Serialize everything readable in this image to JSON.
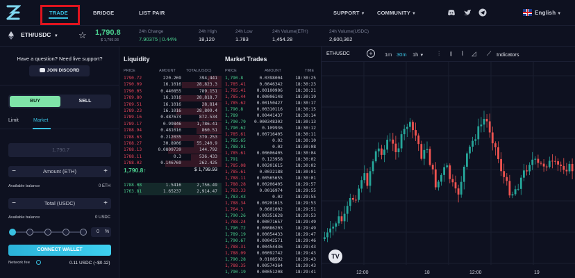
{
  "nav": {
    "items": [
      {
        "label": "TRADE",
        "active": true
      },
      {
        "label": "BRIDGE"
      },
      {
        "label": "LIST PAIR"
      }
    ],
    "support": "SUPPORT",
    "community": "COMMUNITY",
    "language": "English",
    "icons": [
      "discord-icon",
      "twitter-icon",
      "telegram-icon"
    ]
  },
  "ticker": {
    "pair": "ETH/USDC",
    "last_price": "1,790.8",
    "last_usd": "$ 1,799.93",
    "stats": [
      {
        "label": "24h Change",
        "value": "7.90375 | 0.44%",
        "green": true
      },
      {
        "label": "24h High",
        "value": "18,120"
      },
      {
        "label": "24h Low",
        "value": "1.783"
      },
      {
        "label": "24h Volume(ETH)",
        "value": "1,454.28"
      },
      {
        "label": "24h Volume(USDC)",
        "value": "2,600,362"
      }
    ]
  },
  "left": {
    "question": "Have a question? Need live support?",
    "join_discord": "JOIN DISCORD",
    "buy": "BUY",
    "sell": "SELL",
    "limit": "Limit",
    "market": "Market",
    "price_placeholder": "1,790.7",
    "amount_label": "Amount (ETH)",
    "avail_label": "Available balance",
    "avail_eth": "0 ETH",
    "total_label": "Total (USDC)",
    "avail_usdc": "0 USDC",
    "pct_value": "0",
    "pct_sign": "%",
    "connect": "CONNECT WALLET",
    "network_fee_label": "Network fee",
    "network_fee_value": "0.11 USDC (~$0.12)"
  },
  "liquidity": {
    "title": "Liquidity",
    "headers": [
      "PRICE",
      "AMOUNT",
      "TOTAL(USDC)"
    ],
    "asks": [
      [
        "1790.72",
        "220.269",
        "394,441"
      ],
      [
        "1790.09",
        "16.1016",
        "28,823.3"
      ],
      [
        "1790.05",
        "0.440855",
        "789.151"
      ],
      [
        "1789.80",
        "16.1016",
        "28,818.7"
      ],
      [
        "1789.51",
        "16.1016",
        "28,814"
      ],
      [
        "1789.23",
        "16.1016",
        "28,809.4"
      ],
      [
        "1789.16",
        "0.487674",
        "872.534"
      ],
      [
        "1789.17",
        "0.99846",
        "1,786.41"
      ],
      [
        "1788.94",
        "0.481016",
        "860.51"
      ],
      [
        "1788.63",
        "0.212035",
        "379.253"
      ],
      [
        "1788.27",
        "30.8906",
        "55,240.9"
      ],
      [
        "1788.13",
        "0.0809739",
        "144.792"
      ],
      [
        "1788.11",
        "0.3",
        "536.433"
      ],
      [
        "1788.02",
        "0.146769",
        "262.425"
      ]
    ],
    "mid_price": "1,790.8↑",
    "mid_usd": "$ 1,799.93",
    "bids": [
      [
        "1788.08",
        "1.5416",
        "2,756.49"
      ],
      [
        "1763.81",
        "1.65237",
        "2,914.47"
      ]
    ]
  },
  "trades": {
    "title": "Market Trades",
    "headers": [
      "PRICE",
      "AMOUNT",
      "TIME"
    ],
    "rows": [
      [
        "1,790.8",
        "0.0398004",
        "18:30:25",
        "g"
      ],
      [
        "1,785.41",
        "0.0046342",
        "18:30:23",
        "r"
      ],
      [
        "1,785.41",
        "0.00100906",
        "18:30:21",
        "r"
      ],
      [
        "1,785.44",
        "0.00006148",
        "18:30:19",
        "r"
      ],
      [
        "1,785.62",
        "0.00150427",
        "18:30:17",
        "r"
      ],
      [
        "1,790.8",
        "0.00310116",
        "18:30:15",
        "g"
      ],
      [
        "1,789",
        "0.00441437",
        "18:30:14",
        "g"
      ],
      [
        "1,790.79",
        "0.000348302",
        "18:30:13",
        "g"
      ],
      [
        "1,790.62",
        "0.109936",
        "18:30:12",
        "g"
      ],
      [
        "1,785.61",
        "0.00716405",
        "18:30:11",
        "r"
      ],
      [
        "1,785.65",
        "0.02",
        "18:30:10",
        "g"
      ],
      [
        "1,788.91",
        "0.02",
        "18:30:08",
        "g"
      ],
      [
        "1,785.61",
        "0.00606405",
        "18:30:04",
        "r"
      ],
      [
        "1,791",
        "0.123958",
        "18:30:02",
        "g"
      ],
      [
        "1,785.08",
        "0.00201615",
        "18:30:02",
        "r"
      ],
      [
        "1,785.61",
        "0.0032188",
        "18:30:01",
        "r"
      ],
      [
        "1,788.11",
        "0.00565655",
        "18:30:01",
        "r"
      ],
      [
        "1,788.28",
        "0.00206405",
        "18:29:57",
        "r"
      ],
      [
        "1,783.33",
        "0.0016974",
        "18:29:55",
        "r"
      ],
      [
        "1,783.43",
        "0.02",
        "18:29:55",
        "g"
      ],
      [
        "1,788.34",
        "0.00201615",
        "18:29:53",
        "r"
      ],
      [
        "1,764.3",
        "0.0601002",
        "18:29:51",
        "r"
      ],
      [
        "1,790.26",
        "0.00351628",
        "18:29:53",
        "g"
      ],
      [
        "1,788.24",
        "0.00071657",
        "18:29:49",
        "r"
      ],
      [
        "1,790.72",
        "0.00086203",
        "18:29:49",
        "g"
      ],
      [
        "1,789.19",
        "0.00054433",
        "18:29:47",
        "g"
      ],
      [
        "1,790.67",
        "0.00042571",
        "18:29:46",
        "g"
      ],
      [
        "1,788.31",
        "0.00454436",
        "18:29:43",
        "r"
      ],
      [
        "1,788.09",
        "0.00092742",
        "18:29:43",
        "r"
      ],
      [
        "1,790.28",
        "0.0108592",
        "18:29:43",
        "g"
      ],
      [
        "1,788.35",
        "0.00574364",
        "18:29:43",
        "r"
      ],
      [
        "1,790.19",
        "0.00051208",
        "18:29:41",
        "g"
      ]
    ]
  },
  "chart": {
    "symbol": "ETHUSDC",
    "intervals": [
      "1m",
      "30m",
      "1h"
    ],
    "active_interval": "30m",
    "indicators": "Indicators",
    "tv": "TV",
    "x_labels": [
      "12:00",
      "18",
      "12:00",
      "19"
    ],
    "up_color": "#26a69a",
    "down_color": "#ef5350"
  },
  "colors": {
    "accent": "#39c0e0",
    "up": "#4bd08f",
    "down": "#e8445a",
    "highlight": "#e0141e"
  }
}
